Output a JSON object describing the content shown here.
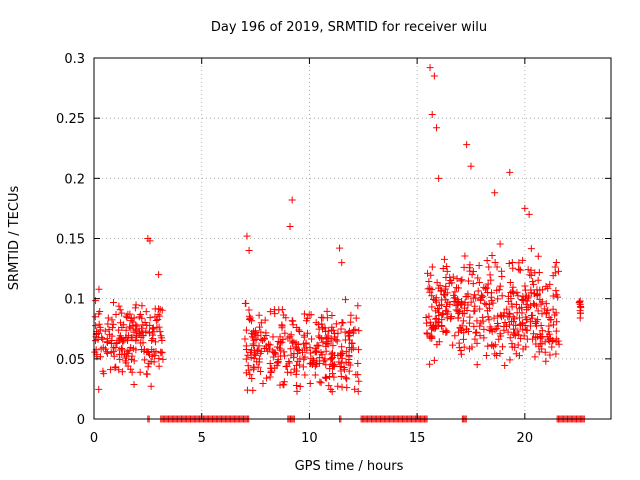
{
  "chart_data": {
    "type": "scatter",
    "title": "Day 196 of 2019, SRMTID for receiver wilu",
    "xlabel": "GPS time / hours",
    "ylabel": "SRMTID / TECUs",
    "xlim": [
      0,
      24
    ],
    "ylim": [
      0,
      0.3
    ],
    "xticks": [
      0,
      5,
      10,
      15,
      20
    ],
    "xtick_labels": [
      "0",
      "5",
      "10",
      "15",
      "20"
    ],
    "yticks": [
      0,
      0.05,
      0.1,
      0.15,
      0.2,
      0.25,
      0.3
    ],
    "ytick_labels": [
      "0",
      "0.05",
      "0.1",
      "0.15",
      "0.2",
      "0.25",
      "0.3"
    ],
    "grid": true,
    "marker": "+",
    "color": "#ff0000",
    "series": [
      {
        "name": "SRMTID",
        "segments": [
          {
            "start": 0.0,
            "end": 3.2,
            "base": 0.065,
            "spread": 0.045,
            "n": 200,
            "seed": 11
          },
          {
            "start": 7.0,
            "end": 12.3,
            "base": 0.058,
            "spread": 0.05,
            "n": 330,
            "seed": 23
          },
          {
            "start": 15.4,
            "end": 21.6,
            "base": 0.09,
            "spread": 0.06,
            "n": 440,
            "seed": 37
          },
          {
            "start": 22.5,
            "end": 22.6,
            "base": 0.092,
            "spread": 0.012,
            "n": 10,
            "seed": 41
          }
        ],
        "peaks": [
          {
            "x": 2.5,
            "y": 0.15
          },
          {
            "x": 2.6,
            "y": 0.148
          },
          {
            "x": 3.0,
            "y": 0.12
          },
          {
            "x": 7.1,
            "y": 0.152
          },
          {
            "x": 7.2,
            "y": 0.14
          },
          {
            "x": 9.1,
            "y": 0.16
          },
          {
            "x": 9.2,
            "y": 0.182
          },
          {
            "x": 11.4,
            "y": 0.142
          },
          {
            "x": 11.5,
            "y": 0.13
          },
          {
            "x": 15.6,
            "y": 0.292
          },
          {
            "x": 15.8,
            "y": 0.285
          },
          {
            "x": 15.7,
            "y": 0.253
          },
          {
            "x": 15.9,
            "y": 0.242
          },
          {
            "x": 16.0,
            "y": 0.2
          },
          {
            "x": 17.3,
            "y": 0.228
          },
          {
            "x": 17.5,
            "y": 0.21
          },
          {
            "x": 19.3,
            "y": 0.205
          },
          {
            "x": 20.0,
            "y": 0.175
          },
          {
            "x": 20.2,
            "y": 0.17
          },
          {
            "x": 18.6,
            "y": 0.188
          }
        ],
        "zero_runs": [
          [
            2.5,
            2.6
          ],
          [
            3.1,
            7.2
          ],
          [
            9.0,
            9.3
          ],
          [
            11.4,
            11.5
          ],
          [
            12.4,
            15.5
          ],
          [
            17.1,
            17.3
          ],
          [
            21.5,
            22.8
          ]
        ]
      }
    ]
  }
}
